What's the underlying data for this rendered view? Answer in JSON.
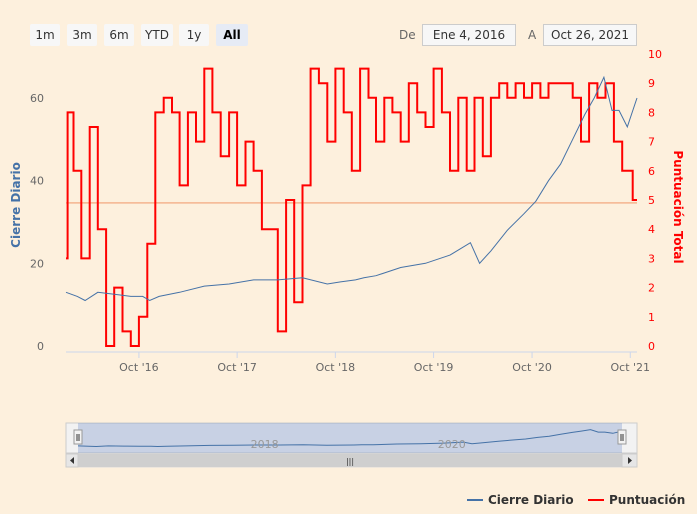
{
  "toolbar": {
    "buttons": [
      "1m",
      "3m",
      "6m",
      "YTD",
      "1y",
      "All"
    ],
    "active": "All",
    "from_label": "De",
    "from_value": "Ene 4, 2016",
    "to_label": "A",
    "to_value": "Oct 26, 2021"
  },
  "colors": {
    "close_series": "#4572a7",
    "score_series": "#ff0000",
    "reference_line": "#f4b48f",
    "background": "#fdf0dd",
    "left_axis_title": "#4572a7",
    "right_axis": "#ff0000"
  },
  "chart_data": {
    "type": "line",
    "x_range": [
      "2016-01-04",
      "2021-10-26"
    ],
    "x_ticks": [
      "Oct '16",
      "Oct '17",
      "Oct '18",
      "Oct '19",
      "Oct '20",
      "Oct '21"
    ],
    "y_left": {
      "title": "Cierre Diario",
      "range": [
        0,
        65
      ],
      "ticks": [
        "0",
        "20",
        "40",
        "60"
      ]
    },
    "y_right": {
      "title": "Puntuación Total",
      "range": [
        0,
        10
      ],
      "ticks": [
        "0",
        "1",
        "2",
        "3",
        "4",
        "5",
        "6",
        "7",
        "8",
        "9",
        "10"
      ]
    },
    "reference_line": {
      "axis": "right",
      "value": 4.9
    },
    "series": [
      {
        "name": "Cierre Diario",
        "axis": "left",
        "step": false,
        "points": [
          [
            "2016-01-04",
            13
          ],
          [
            "2016-02-15",
            12
          ],
          [
            "2016-03-15",
            11
          ],
          [
            "2016-05-01",
            13
          ],
          [
            "2016-07-01",
            12.5
          ],
          [
            "2016-09-01",
            12
          ],
          [
            "2016-10-15",
            12
          ],
          [
            "2016-11-10",
            11
          ],
          [
            "2016-12-15",
            12
          ],
          [
            "2017-03-01",
            13
          ],
          [
            "2017-06-01",
            14.5
          ],
          [
            "2017-09-01",
            15
          ],
          [
            "2017-12-01",
            16
          ],
          [
            "2018-03-01",
            16
          ],
          [
            "2018-06-01",
            16.5
          ],
          [
            "2018-09-01",
            15
          ],
          [
            "2018-10-20",
            15.5
          ],
          [
            "2018-12-15",
            16
          ],
          [
            "2019-01-15",
            16.5
          ],
          [
            "2019-03-01",
            17
          ],
          [
            "2019-06-01",
            19
          ],
          [
            "2019-09-01",
            20
          ],
          [
            "2019-12-01",
            22
          ],
          [
            "2020-02-15",
            25
          ],
          [
            "2020-03-20",
            20
          ],
          [
            "2020-05-01",
            23
          ],
          [
            "2020-07-01",
            28
          ],
          [
            "2020-09-01",
            32
          ],
          [
            "2020-10-15",
            35
          ],
          [
            "2020-12-01",
            40
          ],
          [
            "2021-01-15",
            44
          ],
          [
            "2021-03-01",
            50
          ],
          [
            "2021-04-15",
            56
          ],
          [
            "2021-05-20",
            60
          ],
          [
            "2021-06-25",
            65
          ],
          [
            "2021-07-25",
            57
          ],
          [
            "2021-08-20",
            57
          ],
          [
            "2021-09-20",
            53
          ],
          [
            "2021-10-26",
            60
          ]
        ]
      },
      {
        "name": "Puntuación",
        "axis": "right",
        "step": true,
        "points": [
          [
            "2016-01-04",
            3
          ],
          [
            "2016-01-10",
            8
          ],
          [
            "2016-02-01",
            6
          ],
          [
            "2016-03-01",
            3
          ],
          [
            "2016-04-01",
            7.5
          ],
          [
            "2016-05-01",
            4
          ],
          [
            "2016-06-01",
            0
          ],
          [
            "2016-07-01",
            2
          ],
          [
            "2016-08-01",
            0.5
          ],
          [
            "2016-09-01",
            0
          ],
          [
            "2016-10-01",
            1
          ],
          [
            "2016-11-01",
            3.5
          ],
          [
            "2016-12-01",
            8
          ],
          [
            "2017-01-01",
            8.5
          ],
          [
            "2017-02-01",
            8
          ],
          [
            "2017-03-01",
            5.5
          ],
          [
            "2017-04-01",
            8
          ],
          [
            "2017-05-01",
            7
          ],
          [
            "2017-06-01",
            9.5
          ],
          [
            "2017-07-01",
            8
          ],
          [
            "2017-08-01",
            6.5
          ],
          [
            "2017-09-01",
            8
          ],
          [
            "2017-10-01",
            5.5
          ],
          [
            "2017-11-01",
            7
          ],
          [
            "2017-12-01",
            6
          ],
          [
            "2018-01-01",
            4
          ],
          [
            "2018-03-01",
            0.5
          ],
          [
            "2018-04-01",
            5
          ],
          [
            "2018-05-01",
            1.5
          ],
          [
            "2018-06-01",
            5.5
          ],
          [
            "2018-07-01",
            9.5
          ],
          [
            "2018-08-01",
            9
          ],
          [
            "2018-09-01",
            7
          ],
          [
            "2018-10-01",
            9.5
          ],
          [
            "2018-11-01",
            8
          ],
          [
            "2018-12-01",
            6
          ],
          [
            "2019-01-01",
            9.5
          ],
          [
            "2019-02-01",
            8.5
          ],
          [
            "2019-03-01",
            7
          ],
          [
            "2019-04-01",
            8.5
          ],
          [
            "2019-05-01",
            8
          ],
          [
            "2019-06-01",
            7
          ],
          [
            "2019-07-01",
            9
          ],
          [
            "2019-08-01",
            8
          ],
          [
            "2019-09-01",
            7.5
          ],
          [
            "2019-10-01",
            9.5
          ],
          [
            "2019-11-01",
            8
          ],
          [
            "2019-12-01",
            6
          ],
          [
            "2020-01-01",
            8.5
          ],
          [
            "2020-02-01",
            6
          ],
          [
            "2020-03-01",
            8.5
          ],
          [
            "2020-04-01",
            6.5
          ],
          [
            "2020-05-01",
            8.5
          ],
          [
            "2020-06-01",
            9
          ],
          [
            "2020-07-01",
            8.5
          ],
          [
            "2020-08-01",
            9
          ],
          [
            "2020-09-01",
            8.5
          ],
          [
            "2020-10-01",
            9
          ],
          [
            "2020-11-01",
            8.5
          ],
          [
            "2020-12-01",
            9
          ],
          [
            "2021-01-01",
            9
          ],
          [
            "2021-03-01",
            8.5
          ],
          [
            "2021-04-01",
            7
          ],
          [
            "2021-05-01",
            9
          ],
          [
            "2021-06-01",
            8.5
          ],
          [
            "2021-07-01",
            9
          ],
          [
            "2021-08-01",
            7
          ],
          [
            "2021-09-01",
            6
          ],
          [
            "2021-10-10",
            5
          ],
          [
            "2021-10-26",
            5
          ]
        ]
      }
    ],
    "navigator": {
      "labels": [
        "2018",
        "2020"
      ],
      "handle_glyph": "|||"
    },
    "legend": {
      "position": "bottom-right"
    }
  }
}
